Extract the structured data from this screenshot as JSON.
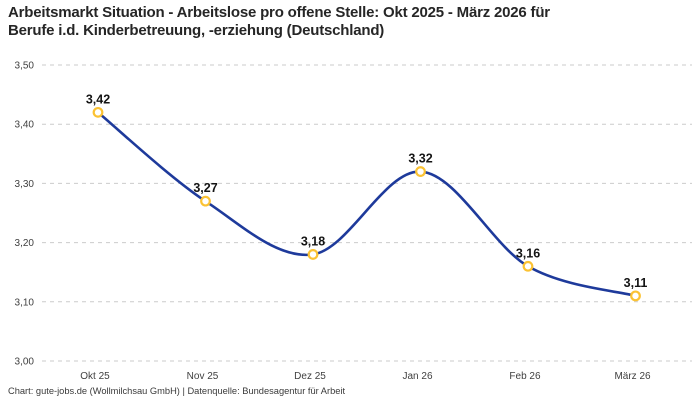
{
  "title_lines": {
    "0": "Arbeitsmarkt Situation - Arbeitslose pro offene Stelle: Okt 2025 - März 2026 für",
    "1": "Berufe i.d. Kinderbetreuung, -erziehung (Deutschland)"
  },
  "footer": "Chart: gute-jobs.de (Wollmilchsau GmbH) | Datenquelle: Bundesagentur für Arbeit",
  "chart_data": {
    "type": "line",
    "title": "Arbeitsmarkt Situation - Arbeitslose pro offene Stelle: Okt 2025 - März 2026 für Berufe i.d. Kinderbetreuung, -erziehung (Deutschland)",
    "categories": [
      "Okt 25",
      "Nov 25",
      "Dez 25",
      "Jan 26",
      "Feb 26",
      "März 26"
    ],
    "series": [
      {
        "name": "Arbeitslose pro offene Stelle",
        "values": [
          3.42,
          3.27,
          3.18,
          3.32,
          3.16,
          3.11
        ],
        "point_labels": [
          "3,42",
          "3,27",
          "3,18",
          "3,32",
          "3,16",
          "3,11"
        ]
      }
    ],
    "ylim": [
      3.0,
      3.5
    ],
    "y_ticks": [
      {
        "value": 3.0,
        "label": "3,00"
      },
      {
        "value": 3.1,
        "label": "3,10"
      },
      {
        "value": 3.2,
        "label": "3,20"
      },
      {
        "value": 3.3,
        "label": "3,30"
      },
      {
        "value": 3.4,
        "label": "3,40"
      },
      {
        "value": 3.5,
        "label": "3,50"
      }
    ],
    "grid": "horizontal-dashed",
    "legend": "none",
    "smooth": true,
    "colors": {
      "line": "#1e3a9b",
      "marker_ring": "#fbc233",
      "marker_fill": "#ffffff",
      "grid": "#cbcbcb"
    }
  }
}
